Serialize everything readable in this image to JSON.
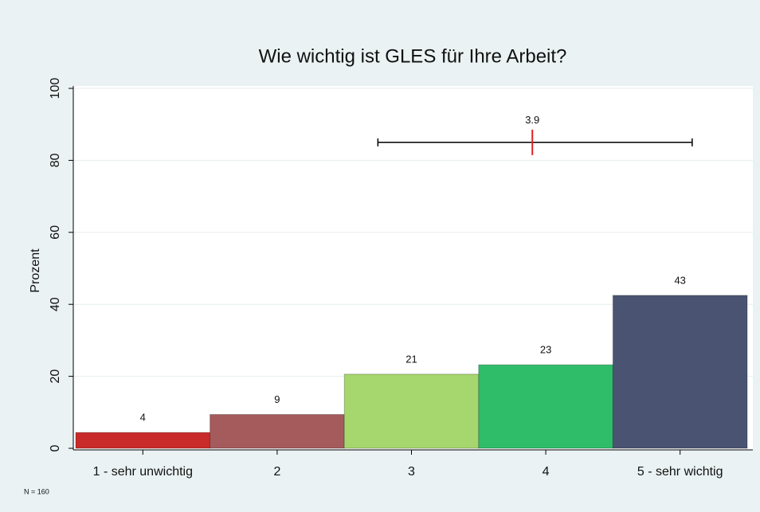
{
  "chart_data": {
    "type": "bar",
    "title": "Wie wichtig ist GLES für Ihre Arbeit?",
    "y_label": "Prozent",
    "note": "N = 160",
    "categories": [
      "1 - sehr unwichtig",
      "2",
      "3",
      "4",
      "5 - sehr wichtig"
    ],
    "values": [
      4.4,
      9.4,
      20.6,
      23.2,
      42.5
    ],
    "value_labels": [
      "4",
      "9",
      "21",
      "23",
      "43"
    ],
    "colors": [
      "#c92a2a",
      "#a55a5c",
      "#a6d66e",
      "#30bd6a",
      "#4a5472"
    ],
    "ylim": [
      0,
      100
    ],
    "yticks": [
      0,
      20,
      40,
      60,
      80,
      100
    ],
    "grid": true,
    "summary": {
      "mean": 3.9,
      "low": 2.75,
      "high": 5.09,
      "y": 85
    }
  }
}
